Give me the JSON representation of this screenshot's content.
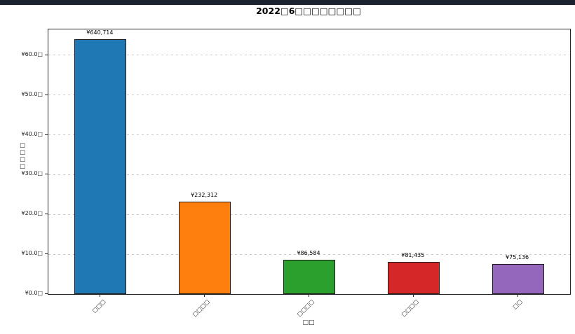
{
  "window": {
    "accent_bar_color": "#1b2230"
  },
  "chart_data": {
    "type": "bar",
    "title": "2022□6□□□□□□□□",
    "xlabel": "□□",
    "ylabel": "□□□□",
    "categories": [
      "□□□",
      "□□□□",
      "□□□□",
      "□□□□",
      "□□"
    ],
    "values": [
      640714,
      232312,
      86584,
      81435,
      75136
    ],
    "value_labels": [
      "¥640,714",
      "¥232,312",
      "¥86,584",
      "¥81,435",
      "¥75,136"
    ],
    "bar_colors": [
      "#1f77b4",
      "#ff7f0e",
      "#2ca02c",
      "#d62728",
      "#9467bd"
    ],
    "bar_edge_color": "#1a1a1a",
    "ylim": [
      0,
      665000
    ],
    "yticks": [
      {
        "value": 0,
        "label": "¥0.0□"
      },
      {
        "value": 100000,
        "label": "¥10.0□"
      },
      {
        "value": 200000,
        "label": "¥20.0□"
      },
      {
        "value": 300000,
        "label": "¥30.0□"
      },
      {
        "value": 400000,
        "label": "¥40.0□"
      },
      {
        "value": 500000,
        "label": "¥50.0□"
      },
      {
        "value": 600000,
        "label": "¥60.0□"
      }
    ],
    "grid": "horizontal dashed",
    "legend": "none"
  }
}
